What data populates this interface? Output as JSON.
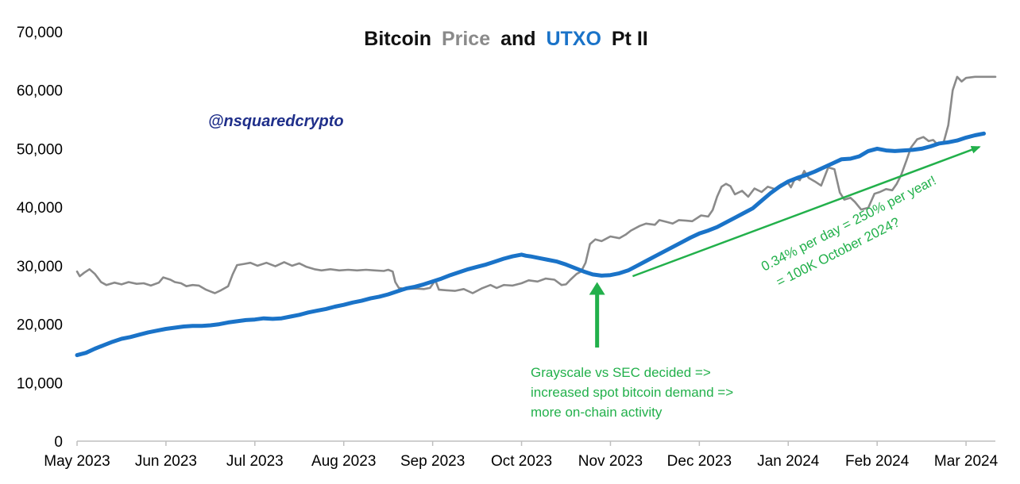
{
  "chart_data": {
    "type": "line",
    "title_parts": [
      {
        "text": "Bitcoin",
        "color": "#111111"
      },
      {
        "text": "Price",
        "color": "#8a8a8a"
      },
      {
        "text": "and",
        "color": "#111111"
      },
      {
        "text": "UTXO",
        "color": "#1a73c8"
      },
      {
        "text": "Pt II",
        "color": "#111111"
      }
    ],
    "handle": "@nsquaredcrypto",
    "ylim": [
      0,
      70000
    ],
    "y_ticks": [
      {
        "value": 0,
        "label": "0"
      },
      {
        "value": 10000,
        "label": "10,000"
      },
      {
        "value": 20000,
        "label": "20,000"
      },
      {
        "value": 30000,
        "label": "30,000"
      },
      {
        "value": 40000,
        "label": "40,000"
      },
      {
        "value": 50000,
        "label": "50,000"
      },
      {
        "value": 60000,
        "label": "60,000"
      },
      {
        "value": 70000,
        "label": "70,000"
      }
    ],
    "x_range": [
      0,
      10.33
    ],
    "x_ticks": [
      {
        "value": 0,
        "label": "May 2023"
      },
      {
        "value": 1,
        "label": "Jun 2023"
      },
      {
        "value": 2,
        "label": "Jul 2023"
      },
      {
        "value": 3,
        "label": "Aug 2023"
      },
      {
        "value": 4,
        "label": "Sep 2023"
      },
      {
        "value": 5,
        "label": "Oct 2023"
      },
      {
        "value": 6,
        "label": "Nov 2023"
      },
      {
        "value": 7,
        "label": "Dec 2023"
      },
      {
        "value": 8,
        "label": "Jan 2024"
      },
      {
        "value": 9,
        "label": "Feb 2024"
      },
      {
        "value": 10,
        "label": "Mar 2024"
      }
    ],
    "series": [
      {
        "name": "Price",
        "color": "#8a8a8a",
        "points": [
          [
            0.0,
            29000
          ],
          [
            0.03,
            28200
          ],
          [
            0.08,
            28800
          ],
          [
            0.14,
            29400
          ],
          [
            0.2,
            28600
          ],
          [
            0.27,
            27200
          ],
          [
            0.33,
            26700
          ],
          [
            0.42,
            27100
          ],
          [
            0.5,
            26800
          ],
          [
            0.58,
            27200
          ],
          [
            0.67,
            26900
          ],
          [
            0.75,
            27000
          ],
          [
            0.83,
            26600
          ],
          [
            0.92,
            27100
          ],
          [
            0.97,
            28000
          ],
          [
            1.05,
            27600
          ],
          [
            1.1,
            27200
          ],
          [
            1.17,
            27000
          ],
          [
            1.23,
            26500
          ],
          [
            1.3,
            26700
          ],
          [
            1.37,
            26600
          ],
          [
            1.45,
            25900
          ],
          [
            1.5,
            25600
          ],
          [
            1.55,
            25300
          ],
          [
            1.62,
            25800
          ],
          [
            1.7,
            26500
          ],
          [
            1.75,
            28500
          ],
          [
            1.8,
            30100
          ],
          [
            1.88,
            30300
          ],
          [
            1.95,
            30500
          ],
          [
            2.03,
            30000
          ],
          [
            2.13,
            30500
          ],
          [
            2.23,
            29900
          ],
          [
            2.33,
            30600
          ],
          [
            2.42,
            30000
          ],
          [
            2.5,
            30400
          ],
          [
            2.58,
            29800
          ],
          [
            2.67,
            29400
          ],
          [
            2.75,
            29200
          ],
          [
            2.85,
            29400
          ],
          [
            2.95,
            29200
          ],
          [
            3.05,
            29300
          ],
          [
            3.15,
            29200
          ],
          [
            3.25,
            29300
          ],
          [
            3.35,
            29200
          ],
          [
            3.45,
            29100
          ],
          [
            3.5,
            29300
          ],
          [
            3.55,
            29000
          ],
          [
            3.58,
            27200
          ],
          [
            3.62,
            26200
          ],
          [
            3.7,
            26000
          ],
          [
            3.8,
            26100
          ],
          [
            3.9,
            26000
          ],
          [
            3.97,
            26200
          ],
          [
            4.03,
            27500
          ],
          [
            4.07,
            25900
          ],
          [
            4.15,
            25800
          ],
          [
            4.25,
            25700
          ],
          [
            4.35,
            26000
          ],
          [
            4.45,
            25300
          ],
          [
            4.55,
            26100
          ],
          [
            4.65,
            26700
          ],
          [
            4.72,
            26200
          ],
          [
            4.8,
            26700
          ],
          [
            4.9,
            26600
          ],
          [
            5.0,
            27000
          ],
          [
            5.08,
            27500
          ],
          [
            5.18,
            27300
          ],
          [
            5.27,
            27800
          ],
          [
            5.37,
            27600
          ],
          [
            5.45,
            26700
          ],
          [
            5.5,
            26800
          ],
          [
            5.55,
            27600
          ],
          [
            5.62,
            28600
          ],
          [
            5.67,
            29000
          ],
          [
            5.72,
            30500
          ],
          [
            5.77,
            33700
          ],
          [
            5.83,
            34500
          ],
          [
            5.9,
            34200
          ],
          [
            6.0,
            35000
          ],
          [
            6.1,
            34700
          ],
          [
            6.17,
            35300
          ],
          [
            6.23,
            36000
          ],
          [
            6.33,
            36800
          ],
          [
            6.4,
            37200
          ],
          [
            6.5,
            37000
          ],
          [
            6.55,
            37800
          ],
          [
            6.63,
            37500
          ],
          [
            6.7,
            37200
          ],
          [
            6.77,
            37800
          ],
          [
            6.85,
            37700
          ],
          [
            6.92,
            37600
          ],
          [
            7.02,
            38600
          ],
          [
            7.1,
            38400
          ],
          [
            7.15,
            39500
          ],
          [
            7.2,
            41800
          ],
          [
            7.25,
            43500
          ],
          [
            7.3,
            44000
          ],
          [
            7.35,
            43600
          ],
          [
            7.4,
            42200
          ],
          [
            7.48,
            42800
          ],
          [
            7.55,
            41800
          ],
          [
            7.62,
            43200
          ],
          [
            7.7,
            42600
          ],
          [
            7.77,
            43500
          ],
          [
            7.85,
            43100
          ],
          [
            7.92,
            43900
          ],
          [
            8.0,
            44100
          ],
          [
            8.03,
            43400
          ],
          [
            8.08,
            45000
          ],
          [
            8.13,
            44600
          ],
          [
            8.18,
            46200
          ],
          [
            8.23,
            45000
          ],
          [
            8.3,
            44400
          ],
          [
            8.37,
            43700
          ],
          [
            8.45,
            46800
          ],
          [
            8.52,
            46500
          ],
          [
            8.58,
            42500
          ],
          [
            8.63,
            41300
          ],
          [
            8.7,
            41600
          ],
          [
            8.75,
            40900
          ],
          [
            8.82,
            39600
          ],
          [
            8.9,
            39900
          ],
          [
            8.97,
            42300
          ],
          [
            9.03,
            42600
          ],
          [
            9.1,
            43100
          ],
          [
            9.17,
            42900
          ],
          [
            9.22,
            44000
          ],
          [
            9.27,
            45500
          ],
          [
            9.33,
            48000
          ],
          [
            9.38,
            50200
          ],
          [
            9.45,
            51600
          ],
          [
            9.52,
            52000
          ],
          [
            9.58,
            51300
          ],
          [
            9.63,
            51500
          ],
          [
            9.68,
            50700
          ],
          [
            9.75,
            51200
          ],
          [
            9.8,
            54000
          ],
          [
            9.85,
            60000
          ],
          [
            9.9,
            62300
          ],
          [
            9.95,
            61500
          ],
          [
            10.0,
            62100
          ],
          [
            10.1,
            62300
          ],
          [
            10.33,
            62300
          ]
        ]
      },
      {
        "name": "UTXO",
        "color": "#1a73c8",
        "points": [
          [
            0.0,
            14700
          ],
          [
            0.1,
            15100
          ],
          [
            0.2,
            15800
          ],
          [
            0.3,
            16400
          ],
          [
            0.4,
            17000
          ],
          [
            0.5,
            17500
          ],
          [
            0.6,
            17800
          ],
          [
            0.7,
            18200
          ],
          [
            0.8,
            18600
          ],
          [
            0.9,
            18900
          ],
          [
            1.0,
            19200
          ],
          [
            1.1,
            19400
          ],
          [
            1.2,
            19600
          ],
          [
            1.3,
            19700
          ],
          [
            1.4,
            19700
          ],
          [
            1.5,
            19800
          ],
          [
            1.6,
            20000
          ],
          [
            1.7,
            20300
          ],
          [
            1.8,
            20500
          ],
          [
            1.9,
            20700
          ],
          [
            2.0,
            20800
          ],
          [
            2.1,
            21000
          ],
          [
            2.2,
            20900
          ],
          [
            2.3,
            21000
          ],
          [
            2.4,
            21300
          ],
          [
            2.5,
            21600
          ],
          [
            2.6,
            22000
          ],
          [
            2.7,
            22300
          ],
          [
            2.8,
            22600
          ],
          [
            2.9,
            23000
          ],
          [
            3.0,
            23300
          ],
          [
            3.1,
            23700
          ],
          [
            3.2,
            24000
          ],
          [
            3.3,
            24400
          ],
          [
            3.4,
            24700
          ],
          [
            3.5,
            25100
          ],
          [
            3.6,
            25600
          ],
          [
            3.7,
            26100
          ],
          [
            3.8,
            26400
          ],
          [
            3.9,
            26800
          ],
          [
            4.0,
            27300
          ],
          [
            4.1,
            27800
          ],
          [
            4.2,
            28400
          ],
          [
            4.3,
            28900
          ],
          [
            4.4,
            29400
          ],
          [
            4.5,
            29800
          ],
          [
            4.6,
            30200
          ],
          [
            4.7,
            30700
          ],
          [
            4.8,
            31200
          ],
          [
            4.9,
            31600
          ],
          [
            5.0,
            31900
          ],
          [
            5.05,
            31700
          ],
          [
            5.1,
            31600
          ],
          [
            5.2,
            31300
          ],
          [
            5.3,
            31000
          ],
          [
            5.4,
            30700
          ],
          [
            5.5,
            30200
          ],
          [
            5.6,
            29600
          ],
          [
            5.7,
            29000
          ],
          [
            5.8,
            28500
          ],
          [
            5.9,
            28300
          ],
          [
            6.0,
            28400
          ],
          [
            6.1,
            28700
          ],
          [
            6.2,
            29200
          ],
          [
            6.3,
            30000
          ],
          [
            6.4,
            30800
          ],
          [
            6.5,
            31600
          ],
          [
            6.6,
            32400
          ],
          [
            6.7,
            33200
          ],
          [
            6.8,
            34000
          ],
          [
            6.9,
            34800
          ],
          [
            7.0,
            35500
          ],
          [
            7.1,
            36000
          ],
          [
            7.2,
            36600
          ],
          [
            7.3,
            37400
          ],
          [
            7.4,
            38200
          ],
          [
            7.5,
            39000
          ],
          [
            7.6,
            39800
          ],
          [
            7.7,
            41100
          ],
          [
            7.8,
            42400
          ],
          [
            7.9,
            43500
          ],
          [
            8.0,
            44400
          ],
          [
            8.1,
            45000
          ],
          [
            8.2,
            45500
          ],
          [
            8.3,
            46100
          ],
          [
            8.4,
            46800
          ],
          [
            8.5,
            47500
          ],
          [
            8.6,
            48200
          ],
          [
            8.7,
            48300
          ],
          [
            8.8,
            48700
          ],
          [
            8.9,
            49600
          ],
          [
            9.0,
            50000
          ],
          [
            9.1,
            49700
          ],
          [
            9.2,
            49600
          ],
          [
            9.3,
            49700
          ],
          [
            9.4,
            49800
          ],
          [
            9.5,
            50000
          ],
          [
            9.6,
            50400
          ],
          [
            9.7,
            50900
          ],
          [
            9.8,
            51100
          ],
          [
            9.9,
            51400
          ],
          [
            10.0,
            51900
          ],
          [
            10.1,
            52300
          ],
          [
            10.2,
            52600
          ]
        ]
      }
    ],
    "annotations": [
      {
        "kind": "arrow",
        "direction": "up",
        "x": 5.85,
        "y_from": 16000,
        "y_to": 27200,
        "color": "#22b04b"
      },
      {
        "kind": "arrow",
        "direction": "diagonal",
        "x_from": 6.25,
        "y_from": 28200,
        "x_to": 10.15,
        "y_to": 50300,
        "color": "#22b04b"
      }
    ],
    "notes": {
      "sec_lines": [
        "Grayscale vs SEC decided =>",
        "increased spot bitcoin demand =>",
        "more on-chain activity"
      ],
      "rate_lines": [
        "0.34% per day = 250% per year!",
        "= 100K October 2024?"
      ],
      "color": "#22b04b"
    }
  }
}
